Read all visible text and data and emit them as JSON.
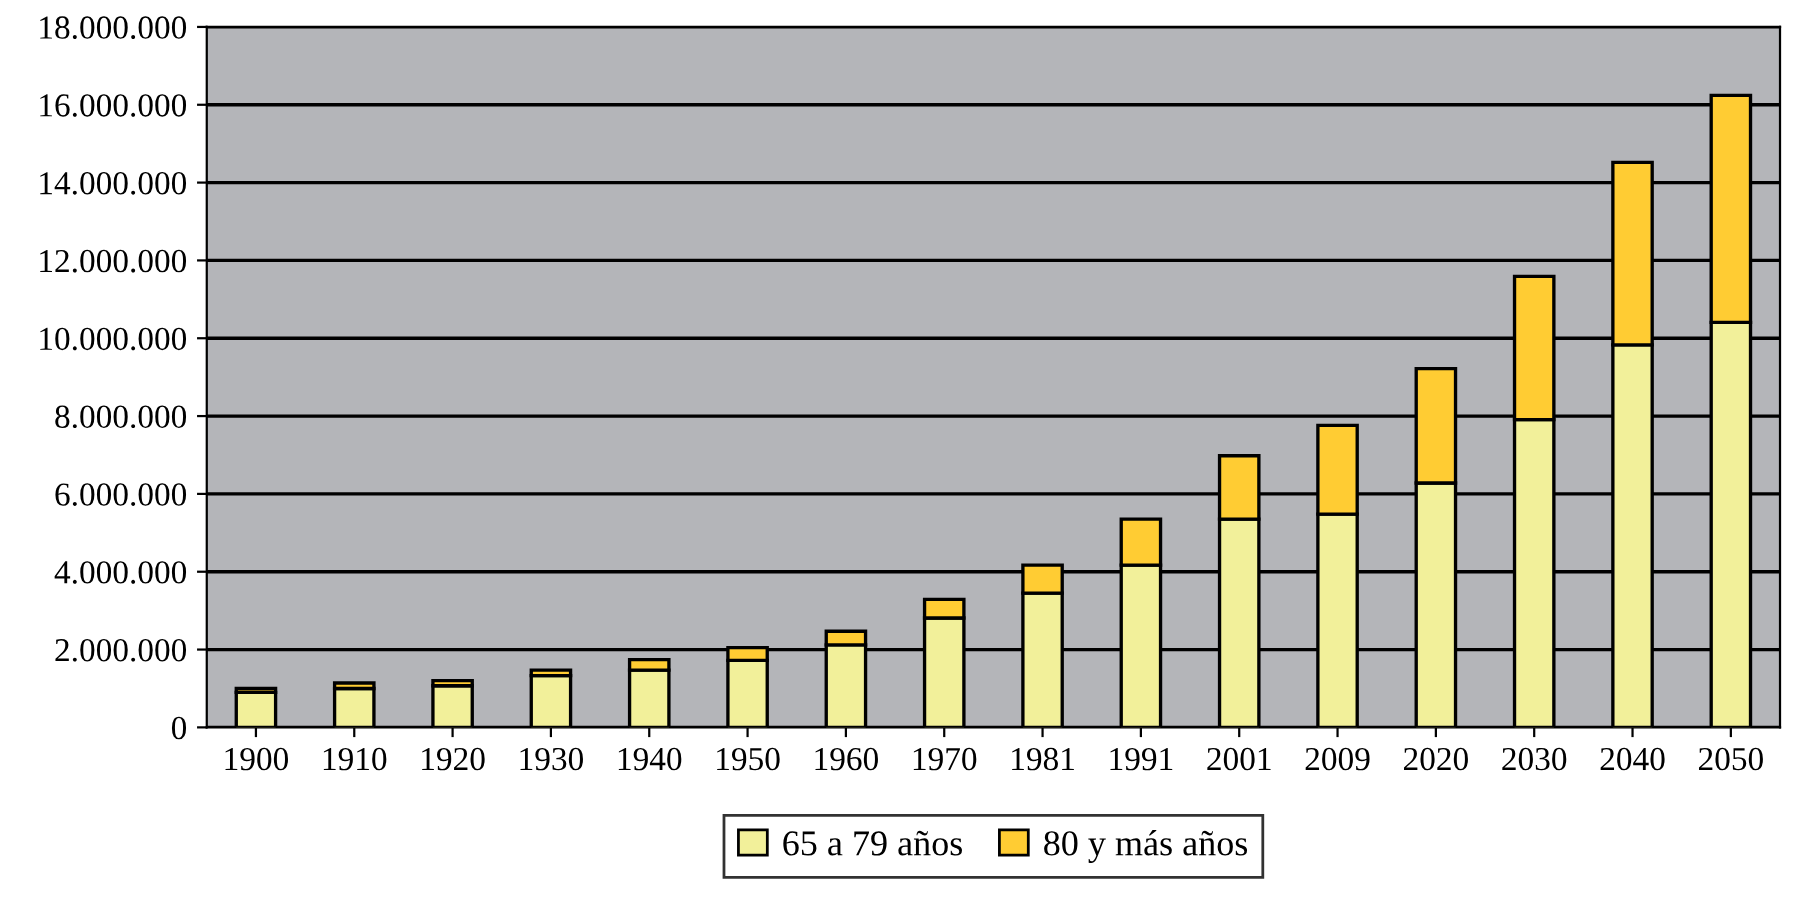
{
  "chart_data": {
    "type": "bar",
    "stacked": true,
    "categories": [
      "1900",
      "1910",
      "1920",
      "1930",
      "1940",
      "1950",
      "1960",
      "1970",
      "1981",
      "1991",
      "2001",
      "2009",
      "2020",
      "2030",
      "2040",
      "2050"
    ],
    "series": [
      {
        "name": "65 a 79 años",
        "color": "#f2f09a",
        "values": [
          900000,
          1000000,
          1070000,
          1330000,
          1470000,
          1720000,
          2120000,
          2810000,
          3450000,
          4170000,
          5350000,
          5480000,
          6280000,
          7910000,
          9830000,
          10410000
        ]
      },
      {
        "name": "80 y más años",
        "color": "#ffcc33",
        "values": [
          100000,
          140000,
          130000,
          140000,
          270000,
          330000,
          350000,
          480000,
          720000,
          1180000,
          1630000,
          2280000,
          2940000,
          3680000,
          4690000,
          5830000
        ]
      }
    ],
    "ylim": [
      0,
      18000000
    ],
    "yticks": [
      {
        "value": 0,
        "label": "0"
      },
      {
        "value": 2000000,
        "label": "2.000.000"
      },
      {
        "value": 4000000,
        "label": "4.000.000"
      },
      {
        "value": 6000000,
        "label": "6.000.000"
      },
      {
        "value": 8000000,
        "label": "8.000.000"
      },
      {
        "value": 10000000,
        "label": "10.000.000"
      },
      {
        "value": 12000000,
        "label": "12.000.000"
      },
      {
        "value": 14000000,
        "label": "14.000.000"
      },
      {
        "value": 16000000,
        "label": "16.000.000"
      },
      {
        "value": 18000000,
        "label": "18.000.000"
      }
    ],
    "grid": "y",
    "legend": "bottom"
  }
}
